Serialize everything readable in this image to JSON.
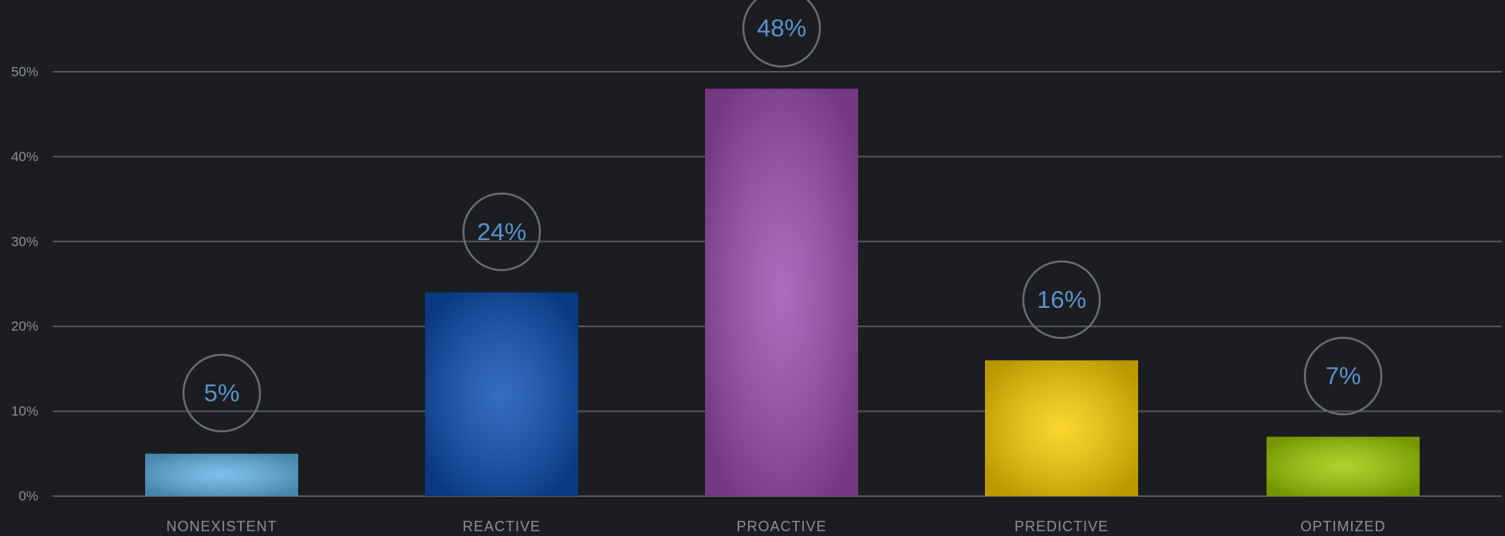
{
  "chart_data": {
    "type": "bar",
    "categories": [
      "NONEXISTENT",
      "REACTIVE",
      "PROACTIVE",
      "PREDICTIVE",
      "OPTIMIZED"
    ],
    "values": [
      5,
      24,
      48,
      16,
      7
    ],
    "value_labels": [
      "5%",
      "24%",
      "48%",
      "16%",
      "7%"
    ],
    "colors": [
      "#5fb2e4",
      "#0a4db0",
      "#9a4cad",
      "#f8cc00",
      "#9cc800"
    ],
    "ylim": [
      0,
      50
    ],
    "yticks": [
      {
        "value": 0,
        "label": "0%"
      },
      {
        "value": 10,
        "label": "10%"
      },
      {
        "value": 20,
        "label": "20%"
      },
      {
        "value": 30,
        "label": "30%"
      },
      {
        "value": 40,
        "label": "40%"
      },
      {
        "value": 50,
        "label": "50%"
      }
    ],
    "grid": true
  }
}
